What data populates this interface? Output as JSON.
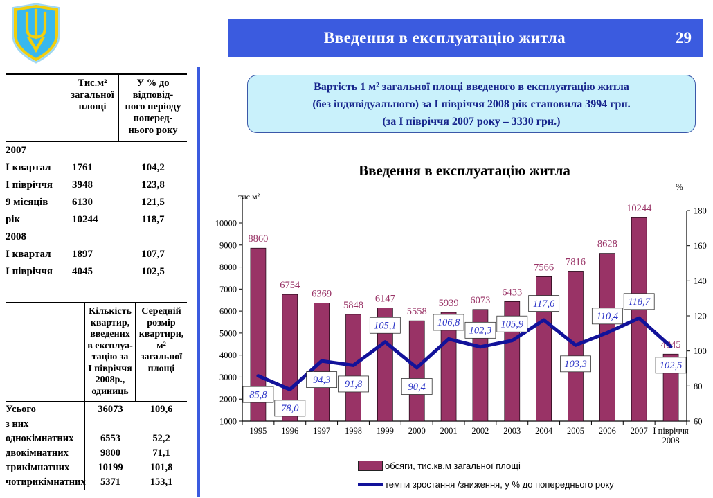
{
  "header": {
    "title": "Введення в експлуатацію житла",
    "page_number": "29"
  },
  "info_box": {
    "line1": "Вартість 1 м² загальної площі введеного в експлуатацію житла",
    "line2": "(без індивідуального) за І півріччя 2008 рік становила 3994 грн.",
    "line3": "(за І півріччя 2007 року – 3330 грн.)"
  },
  "table1": {
    "headers": {
      "col1": "",
      "col2": "Тис.м²\nзагальної\nплощі",
      "col3": "У % до\nвідповід-\nного періоду\nпоперед-\nнього року"
    },
    "rows": [
      {
        "label": "2007",
        "area": "",
        "pct": ""
      },
      {
        "label": "І квартал",
        "area": "1761",
        "pct": "104,2"
      },
      {
        "label": "І півріччя",
        "area": "3948",
        "pct": "123,8"
      },
      {
        "label": "9 місяців",
        "area": "6130",
        "pct": "121,5"
      },
      {
        "label": "рік",
        "area": "10244",
        "pct": "118,7"
      },
      {
        "label": "2008",
        "area": "",
        "pct": ""
      },
      {
        "label": "І квартал",
        "area": "1897",
        "pct": "107,7"
      },
      {
        "label": "І півріччя",
        "area": "4045",
        "pct": "102,5"
      }
    ]
  },
  "table2": {
    "headers": {
      "col1": "",
      "col2": "Кількість\nквартир,\nвведених\nв експлуа-\nтацію за\nІ півріччя\n2008р.,\nодиниць",
      "col3": "Середній\nрозмір\nквартири,\nм²\nзагальної\nплощі"
    },
    "rows": [
      {
        "label": "Усього",
        "count": "36073",
        "size": "109,6"
      },
      {
        "label": "з них",
        "count": "",
        "size": ""
      },
      {
        "label": "однокімнатних",
        "count": "6553",
        "size": "52,2"
      },
      {
        "label": "двокімнатних",
        "count": "9800",
        "size": "71,1"
      },
      {
        "label": "трикімнатних",
        "count": "10199",
        "size": "101,8"
      },
      {
        "label": "чотирикімнатних",
        "count": "5371",
        "size": "153,1"
      }
    ]
  },
  "chart_data": {
    "type": "bar",
    "title": "Введення в експлуатацію житла",
    "categories": [
      "1995",
      "1996",
      "1997",
      "1998",
      "1999",
      "2000",
      "2001",
      "2002",
      "2003",
      "2004",
      "2005",
      "2006",
      "2007",
      "І півріччя\n2008"
    ],
    "series": [
      {
        "name": "обсяги, тис.кв.м загальної площі",
        "type": "bar",
        "axis": "left",
        "color": "#993366",
        "values": [
          8860,
          6754,
          6369,
          5848,
          6147,
          5558,
          5939,
          6073,
          6433,
          7566,
          7816,
          8628,
          10244,
          4045
        ]
      },
      {
        "name": "темпи зростання /зниження, у % до попереднього року",
        "type": "line",
        "axis": "right",
        "color": "#12129A",
        "values": [
          85.8,
          78.0,
          94.3,
          91.8,
          105.1,
          90.4,
          106.8,
          102.3,
          105.9,
          117.6,
          103.3,
          110.4,
          118.7,
          102.5
        ],
        "point_labels": [
          "85,8",
          "78,0",
          "94,3",
          "91,8",
          "105,1",
          "90,4",
          "106,8",
          "102,3",
          "105,9",
          "117,6",
          "103,3",
          "110,4",
          "118,7",
          "102,5"
        ],
        "label_side": [
          "below",
          "below",
          "below",
          "below",
          "above",
          "below",
          "above",
          "above",
          "above",
          "above",
          "below",
          "above",
          "above",
          "below"
        ]
      }
    ],
    "left_axis": {
      "label": "тис.м²",
      "min": 1000,
      "max": 10000,
      "step": 1000
    },
    "right_axis": {
      "label": "%",
      "min": 60,
      "max": 180,
      "step": 20
    },
    "grid": false,
    "legend_position": "bottom",
    "colors": {
      "bar_value_label": "#993366",
      "rate_label_text": "#3038C8",
      "accent_blue": "#3B5BDF"
    }
  }
}
